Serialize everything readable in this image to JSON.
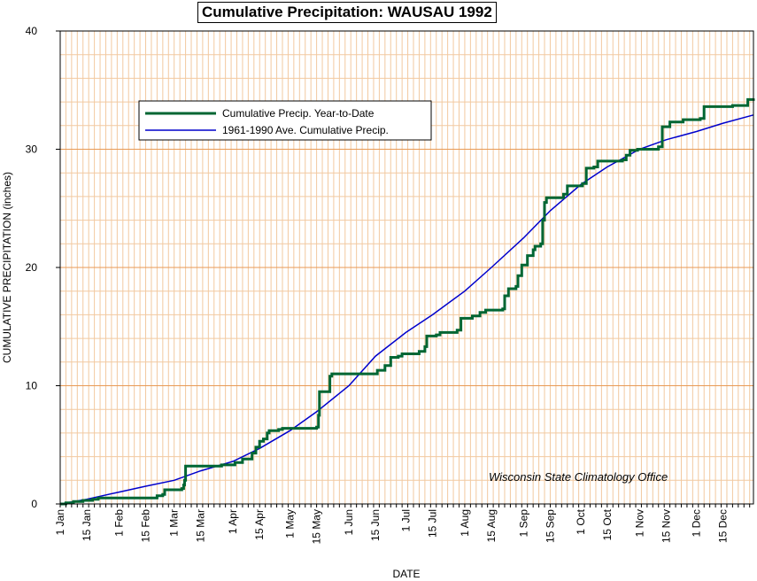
{
  "chart_data": {
    "type": "line",
    "title": "Cumulative Precipitation: WAUSAU 1992",
    "xlabel": "DATE",
    "ylabel": "CUMULATIVE PRECIPITATION (inches)",
    "ylim": [
      0,
      40
    ],
    "xlim": [
      1,
      366
    ],
    "y_ticks": [
      0,
      10,
      20,
      30,
      40
    ],
    "x_tick_labels": [
      {
        "label": "1 Jan",
        "day": 1
      },
      {
        "label": "15 Jan",
        "day": 15
      },
      {
        "label": "1 Feb",
        "day": 32
      },
      {
        "label": "15 Feb",
        "day": 46
      },
      {
        "label": "1 Mar",
        "day": 61
      },
      {
        "label": "15 Mar",
        "day": 75
      },
      {
        "label": "1 Apr",
        "day": 92
      },
      {
        "label": "15 Apr",
        "day": 106
      },
      {
        "label": "1 May",
        "day": 122
      },
      {
        "label": "15 May",
        "day": 136
      },
      {
        "label": "1 Jun",
        "day": 153
      },
      {
        "label": "15 Jun",
        "day": 167
      },
      {
        "label": "1 Jul",
        "day": 183
      },
      {
        "label": "15 Jul",
        "day": 197
      },
      {
        "label": "1 Aug",
        "day": 214
      },
      {
        "label": "15 Aug",
        "day": 228
      },
      {
        "label": "1 Sep",
        "day": 245
      },
      {
        "label": "15 Sep",
        "day": 259
      },
      {
        "label": "1 Oct",
        "day": 275
      },
      {
        "label": "15 Oct",
        "day": 289
      },
      {
        "label": "1 Nov",
        "day": 306
      },
      {
        "label": "15 Nov",
        "day": 320
      },
      {
        "label": "1 Dec",
        "day": 336
      },
      {
        "label": "15 Dec",
        "day": 350
      }
    ],
    "grid": true,
    "legend_position": "top-left",
    "annotation": "Wisconsin State Climatology Office",
    "series": [
      {
        "name": "Cumulative Precip. Year-to-Date",
        "color": "#006633",
        "step": true,
        "points": [
          [
            1,
            0
          ],
          [
            4,
            0.1
          ],
          [
            8,
            0.2
          ],
          [
            13,
            0.3
          ],
          [
            18,
            0.4
          ],
          [
            21,
            0.5
          ],
          [
            50,
            0.5
          ],
          [
            52,
            0.7
          ],
          [
            55,
            0.8
          ],
          [
            56,
            1.2
          ],
          [
            65,
            1.3
          ],
          [
            66,
            1.6
          ],
          [
            66.5,
            2.0
          ],
          [
            67,
            3.2
          ],
          [
            86,
            3.3
          ],
          [
            93,
            3.5
          ],
          [
            97,
            3.8
          ],
          [
            102,
            4.3
          ],
          [
            104,
            4.8
          ],
          [
            106,
            5.3
          ],
          [
            108,
            5.5
          ],
          [
            110,
            6.0
          ],
          [
            111,
            6.2
          ],
          [
            116,
            6.3
          ],
          [
            118,
            6.4
          ],
          [
            136,
            6.5
          ],
          [
            137,
            7.5
          ],
          [
            137.5,
            9.5
          ],
          [
            143,
            10.8
          ],
          [
            144,
            11.0
          ],
          [
            167,
            11.0
          ],
          [
            168,
            11.3
          ],
          [
            172,
            11.7
          ],
          [
            175,
            12.4
          ],
          [
            179,
            12.5
          ],
          [
            181,
            12.7
          ],
          [
            190,
            12.9
          ],
          [
            193,
            13.3
          ],
          [
            194,
            14.2
          ],
          [
            199,
            14.3
          ],
          [
            201,
            14.5
          ],
          [
            210,
            14.7
          ],
          [
            212,
            15.7
          ],
          [
            218,
            15.9
          ],
          [
            222,
            16.2
          ],
          [
            225,
            16.4
          ],
          [
            234,
            16.5
          ],
          [
            235,
            17.6
          ],
          [
            237,
            18.2
          ],
          [
            241,
            18.4
          ],
          [
            242,
            19.3
          ],
          [
            244,
            20.2
          ],
          [
            247,
            21.0
          ],
          [
            250,
            21.5
          ],
          [
            251,
            21.8
          ],
          [
            254,
            22.0
          ],
          [
            255,
            24.0
          ],
          [
            256,
            25.5
          ],
          [
            257,
            25.9
          ],
          [
            266,
            26.2
          ],
          [
            268,
            26.9
          ],
          [
            276,
            27.1
          ],
          [
            278,
            28.4
          ],
          [
            282,
            28.5
          ],
          [
            284,
            29.0
          ],
          [
            297,
            29.1
          ],
          [
            299,
            29.5
          ],
          [
            301,
            29.9
          ],
          [
            305,
            30.0
          ],
          [
            316,
            30.2
          ],
          [
            318,
            31.9
          ],
          [
            322,
            32.3
          ],
          [
            329,
            32.5
          ],
          [
            338,
            32.6
          ],
          [
            340,
            33.6
          ],
          [
            355,
            33.7
          ],
          [
            363,
            34.2
          ],
          [
            366,
            34.3
          ]
        ]
      },
      {
        "name": "1961-1990 Ave. Cumulative Precip.",
        "color": "#0000cc",
        "step": false,
        "points": [
          [
            1,
            0
          ],
          [
            15,
            0.4
          ],
          [
            32,
            1.0
          ],
          [
            46,
            1.5
          ],
          [
            61,
            2.0
          ],
          [
            75,
            2.8
          ],
          [
            92,
            3.6
          ],
          [
            106,
            4.7
          ],
          [
            122,
            6.2
          ],
          [
            136,
            7.8
          ],
          [
            153,
            10.0
          ],
          [
            167,
            12.5
          ],
          [
            183,
            14.5
          ],
          [
            197,
            16.0
          ],
          [
            214,
            18.0
          ],
          [
            228,
            20.0
          ],
          [
            245,
            22.5
          ],
          [
            259,
            24.8
          ],
          [
            275,
            27.0
          ],
          [
            289,
            28.5
          ],
          [
            306,
            30.0
          ],
          [
            320,
            30.8
          ],
          [
            336,
            31.5
          ],
          [
            350,
            32.2
          ],
          [
            366,
            32.9
          ]
        ]
      }
    ]
  }
}
